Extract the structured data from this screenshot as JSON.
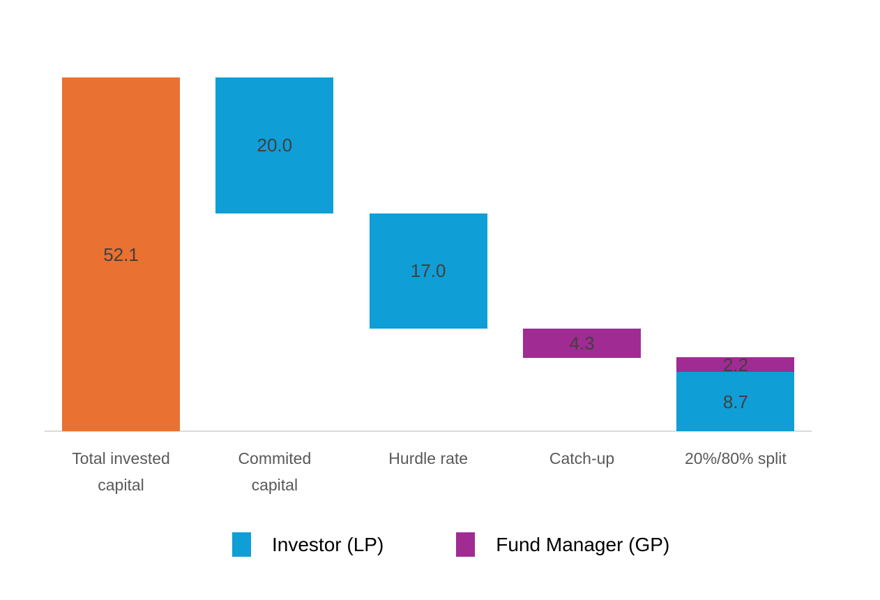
{
  "page": {
    "background": "#FFFFFF"
  },
  "chart_data": {
    "type": "bar",
    "subtype": "waterfall-stacked",
    "title": "",
    "xlabel": "",
    "ylabel": "",
    "ylim": [
      0,
      52.1
    ],
    "grid": false,
    "legend_position": "bottom",
    "axis_line_color": "#D9D9D9",
    "data_label_color": "#404040",
    "category_label_color": "#595959",
    "legend_text_color": "#000000",
    "colors": {
      "total": "#E97132",
      "lp": "#0F9ED5",
      "gp": "#A02B93"
    },
    "series_names": {
      "total": "Total invested capital",
      "lp": "Investor (LP)",
      "gp": "Fund Manager (GP)"
    },
    "categories": [
      "Total invested capital",
      "Commited capital",
      "Hurdle rate",
      "Catch-up",
      "20%/80% split"
    ],
    "bars": [
      {
        "category": "Total invested capital",
        "label_lines": [
          "Total invested",
          "capital"
        ],
        "segments": [
          {
            "label": "52.1",
            "value": 52.1,
            "from": 0,
            "to": 52.1,
            "color_key": "total"
          }
        ]
      },
      {
        "category": "Commited capital",
        "label_lines": [
          "Commited",
          "capital"
        ],
        "segments": [
          {
            "label": "20.0",
            "value": 20.0,
            "from": 32.1,
            "to": 52.1,
            "color_key": "lp"
          }
        ]
      },
      {
        "category": "Hurdle rate",
        "label_lines": [
          "Hurdle rate"
        ],
        "segments": [
          {
            "label": "17.0",
            "value": 17.0,
            "from": 15.1,
            "to": 32.1,
            "color_key": "lp"
          }
        ]
      },
      {
        "category": "Catch-up",
        "label_lines": [
          "Catch-up"
        ],
        "segments": [
          {
            "label": "4.3",
            "value": 4.3,
            "from": 10.8,
            "to": 15.1,
            "color_key": "gp"
          }
        ]
      },
      {
        "category": "20%/80% split",
        "label_lines": [
          "20%/80% split"
        ],
        "segments": [
          {
            "label": "2.2",
            "value": 2.2,
            "from": 8.7,
            "to": 10.9,
            "color_key": "gp"
          },
          {
            "label": "8.7",
            "value": 8.7,
            "from": 0,
            "to": 8.7,
            "color_key": "lp"
          }
        ]
      }
    ],
    "legend": [
      {
        "label": "Investor (LP)",
        "color_key": "lp"
      },
      {
        "label": "Fund Manager (GP)",
        "color_key": "gp"
      }
    ]
  }
}
